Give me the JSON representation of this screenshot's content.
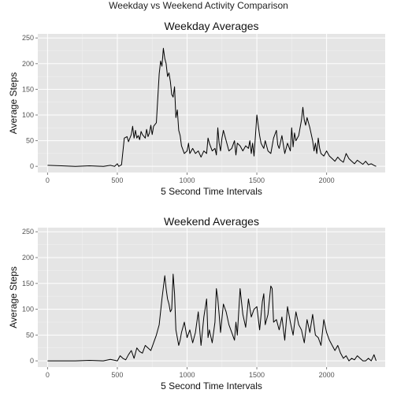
{
  "suptitle": "Weekday vs Weekend Activity Comparison",
  "chart_data": [
    {
      "type": "line",
      "title": "Weekday Averages",
      "xlabel": "5 Second Time Intervals",
      "ylabel": "Average Steps",
      "xlim": [
        -70,
        2420
      ],
      "ylim": [
        -12,
        258
      ],
      "xticks": [
        0,
        500,
        1000,
        1500,
        2000
      ],
      "yticks": [
        0,
        50,
        100,
        150,
        200,
        250
      ],
      "grid": true,
      "x": [
        0,
        100,
        200,
        300,
        400,
        450,
        480,
        500,
        510,
        530,
        550,
        570,
        580,
        600,
        610,
        620,
        630,
        640,
        650,
        660,
        670,
        680,
        700,
        710,
        720,
        730,
        740,
        750,
        760,
        780,
        800,
        810,
        820,
        830,
        840,
        850,
        860,
        870,
        880,
        890,
        900,
        910,
        920,
        930,
        940,
        950,
        960,
        980,
        1000,
        1010,
        1020,
        1040,
        1060,
        1080,
        1100,
        1120,
        1140,
        1150,
        1160,
        1180,
        1200,
        1210,
        1220,
        1230,
        1240,
        1250,
        1260,
        1280,
        1300,
        1320,
        1340,
        1350,
        1360,
        1380,
        1400,
        1420,
        1440,
        1450,
        1460,
        1470,
        1480,
        1500,
        1510,
        1520,
        1530,
        1540,
        1550,
        1560,
        1580,
        1600,
        1620,
        1640,
        1650,
        1660,
        1680,
        1700,
        1720,
        1740,
        1750,
        1760,
        1770,
        1780,
        1800,
        1820,
        1830,
        1840,
        1850,
        1860,
        1870,
        1880,
        1900,
        1910,
        1920,
        1930,
        1940,
        1950,
        1960,
        1980,
        2000,
        2020,
        2040,
        2060,
        2080,
        2100,
        2120,
        2140,
        2160,
        2180,
        2200,
        2220,
        2240,
        2260,
        2280,
        2300,
        2320,
        2340,
        2355
      ],
      "y": [
        2,
        1,
        0,
        1,
        0,
        2,
        0,
        5,
        0,
        3,
        55,
        58,
        48,
        62,
        78,
        55,
        70,
        55,
        60,
        52,
        68,
        62,
        55,
        72,
        58,
        65,
        80,
        62,
        78,
        85,
        180,
        205,
        195,
        230,
        210,
        200,
        175,
        182,
        165,
        140,
        135,
        155,
        95,
        110,
        70,
        60,
        40,
        25,
        30,
        45,
        25,
        35,
        25,
        30,
        18,
        30,
        25,
        55,
        45,
        30,
        35,
        22,
        75,
        45,
        30,
        55,
        70,
        50,
        30,
        35,
        50,
        22,
        45,
        40,
        30,
        40,
        35,
        50,
        25,
        45,
        20,
        100,
        80,
        60,
        45,
        40,
        35,
        50,
        30,
        25,
        55,
        70,
        42,
        35,
        60,
        25,
        45,
        30,
        75,
        38,
        65,
        50,
        60,
        90,
        115,
        90,
        80,
        95,
        85,
        75,
        50,
        30,
        45,
        25,
        55,
        35,
        25,
        20,
        30,
        20,
        15,
        10,
        18,
        12,
        8,
        25,
        15,
        10,
        5,
        12,
        8,
        4,
        10,
        3,
        5,
        2,
        0
      ]
    },
    {
      "type": "line",
      "title": "Weekend Averages",
      "xlabel": "5 Second Time Intervals",
      "ylabel": "Average Steps",
      "xlim": [
        -70,
        2420
      ],
      "ylim": [
        -12,
        258
      ],
      "xticks": [
        0,
        500,
        1000,
        1500,
        2000
      ],
      "yticks": [
        0,
        50,
        100,
        150,
        200,
        250
      ],
      "grid": true,
      "x": [
        0,
        100,
        200,
        300,
        400,
        450,
        500,
        520,
        540,
        560,
        580,
        600,
        620,
        640,
        660,
        680,
        700,
        720,
        740,
        760,
        780,
        800,
        820,
        840,
        850,
        860,
        870,
        880,
        890,
        900,
        910,
        920,
        930,
        940,
        950,
        960,
        980,
        1000,
        1020,
        1040,
        1060,
        1080,
        1100,
        1120,
        1140,
        1150,
        1160,
        1180,
        1200,
        1210,
        1220,
        1230,
        1240,
        1260,
        1280,
        1300,
        1320,
        1340,
        1350,
        1360,
        1380,
        1400,
        1420,
        1440,
        1460,
        1480,
        1500,
        1520,
        1540,
        1550,
        1560,
        1580,
        1600,
        1610,
        1620,
        1640,
        1660,
        1680,
        1700,
        1720,
        1740,
        1760,
        1780,
        1800,
        1820,
        1840,
        1860,
        1880,
        1900,
        1920,
        1940,
        1960,
        1980,
        2000,
        2020,
        2040,
        2060,
        2080,
        2100,
        2120,
        2140,
        2160,
        2180,
        2200,
        2220,
        2240,
        2260,
        2280,
        2300,
        2320,
        2340,
        2355
      ],
      "y": [
        0,
        0,
        0,
        1,
        0,
        3,
        0,
        10,
        5,
        2,
        12,
        20,
        5,
        25,
        18,
        15,
        30,
        25,
        20,
        35,
        50,
        70,
        120,
        165,
        140,
        120,
        110,
        95,
        100,
        168,
        130,
        60,
        45,
        30,
        40,
        55,
        75,
        45,
        60,
        35,
        55,
        95,
        30,
        85,
        120,
        45,
        60,
        35,
        75,
        140,
        120,
        90,
        55,
        110,
        95,
        70,
        55,
        40,
        75,
        50,
        140,
        90,
        65,
        120,
        85,
        100,
        105,
        60,
        115,
        130,
        70,
        90,
        145,
        140,
        75,
        80,
        60,
        85,
        40,
        105,
        75,
        50,
        95,
        70,
        60,
        35,
        80,
        55,
        90,
        50,
        45,
        30,
        80,
        55,
        40,
        30,
        20,
        30,
        15,
        5,
        10,
        0,
        5,
        2,
        10,
        5,
        0,
        0,
        5,
        0,
        12,
        0
      ]
    }
  ]
}
